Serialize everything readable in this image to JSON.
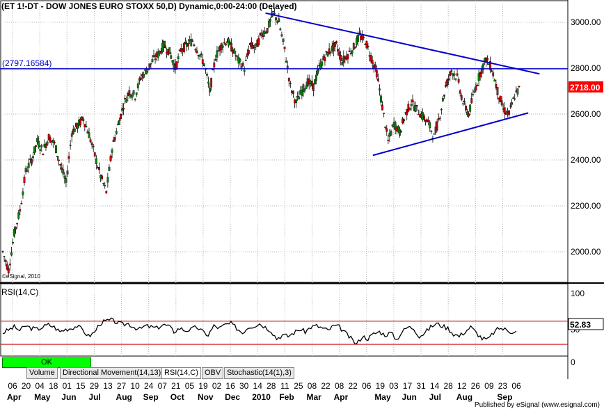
{
  "header": {
    "title": "(ET 1!-DT - DOW JONES EURO STOXX 50,D) Dynamic,0:00-24:00 (Delayed)",
    "watermark": "©eSignal, 2010"
  },
  "price_panel": {
    "ylabels": [
      "3000.00",
      "2800.00",
      "2600.00",
      "2400.00",
      "2200.00",
      "2000.00"
    ],
    "hline_label": "(2797.16584)",
    "hline_value": 2797.16584,
    "last_price_label": "2718.00",
    "last_price_color": "#ff0000",
    "line_color": "#0000cc"
  },
  "rsi_panel": {
    "title": "RSI(14,C)",
    "ylabels": [
      "100",
      "50",
      "0"
    ],
    "value_label": "52.83",
    "upper_band": 70,
    "lower_band": 30,
    "band_color": "#cc0000"
  },
  "status": {
    "ok_label": "OK",
    "ok_color": "#00ff00"
  },
  "tabs": [
    {
      "label": "Volume"
    },
    {
      "label": "Directional Movement(14,13)"
    },
    {
      "label": "RSI(14,C)"
    },
    {
      "label": "OBV"
    },
    {
      "label": "Stochastic(14(1),3)"
    }
  ],
  "publisher": "Published by eSignal (www.esignal.com)",
  "chart_data": {
    "type": "line",
    "title": "(ET 1!-DT - DOW JONES EURO STOXX 50,D) Dynamic,0:00-24:00 (Delayed)",
    "ylim": [
      1900,
      3080
    ],
    "x_day_ticks": [
      "06",
      "20",
      "04",
      "18",
      "01",
      "15",
      "29",
      "13",
      "27",
      "10",
      "24",
      "07",
      "21",
      "05",
      "19",
      "02",
      "16",
      "30",
      "14",
      "28",
      "11",
      "25",
      "08",
      "22",
      "08",
      "22",
      "06",
      "19",
      "03",
      "17",
      "31",
      "14",
      "28",
      "12",
      "26",
      "09",
      "23",
      "06"
    ],
    "x_month_ticks": [
      "Apr",
      "May",
      "Jun",
      "Jul",
      "Aug",
      "Sep",
      "Oct",
      "Nov",
      "Dec",
      "2010",
      "Feb",
      "Mar",
      "Apr",
      "May",
      "Jun",
      "Jul",
      "Aug",
      "Sep"
    ],
    "series": [
      {
        "values": [
          2000,
          1920,
          2080,
          2180,
          2350,
          2400,
          2480,
          2440,
          2500,
          2470,
          2380,
          2300,
          2520,
          2550,
          2580,
          2510,
          2420,
          2330,
          2260,
          2450,
          2550,
          2640,
          2700,
          2680,
          2760,
          2790,
          2830,
          2860,
          2900,
          2870,
          2800,
          2880,
          2900,
          2920,
          2870,
          2820,
          2700,
          2850,
          2900,
          2920,
          2880,
          2830,
          2800,
          2900,
          2890,
          2950,
          2970,
          3040,
          3000,
          2880,
          2720,
          2650,
          2700,
          2740,
          2720,
          2800,
          2850,
          2880,
          2900,
          2830,
          2860,
          2890,
          2940,
          2920,
          2850,
          2780,
          2630,
          2480,
          2560,
          2520,
          2600,
          2650,
          2620,
          2590,
          2560,
          2500,
          2600,
          2720,
          2790,
          2760,
          2650,
          2600,
          2700,
          2780,
          2840,
          2800,
          2700,
          2620,
          2600,
          2680,
          2718
        ]
      }
    ],
    "rsi": {
      "values": [
        50,
        55,
        60,
        54,
        62,
        58,
        56,
        60,
        64,
        60,
        52,
        56,
        58,
        62,
        55,
        44,
        50,
        66,
        70,
        72,
        68,
        64,
        66,
        60,
        56,
        62,
        60,
        58,
        64,
        62,
        52,
        58,
        54,
        56,
        60,
        52,
        46,
        62,
        58,
        64,
        66,
        58,
        50,
        60,
        62,
        66,
        60,
        54,
        40,
        46,
        44,
        50,
        56,
        52,
        60,
        62,
        58,
        54,
        62,
        60,
        50,
        40,
        30,
        44,
        40,
        48,
        52,
        46,
        50,
        38,
        52,
        60,
        58,
        44,
        50,
        60,
        66,
        62,
        58,
        48,
        44,
        52,
        60,
        50,
        40,
        38,
        50,
        58,
        56,
        52,
        53
      ],
      "upper": 70,
      "lower": 30,
      "last": 52.83
    },
    "trendlines": [
      {
        "name": "",
        "from": [
          0.465,
          3040
        ],
        "to": [
          0.95,
          2775
        ]
      },
      {
        "name": "",
        "from": [
          0.655,
          2420
        ],
        "to": [
          0.93,
          2605
        ]
      }
    ]
  }
}
